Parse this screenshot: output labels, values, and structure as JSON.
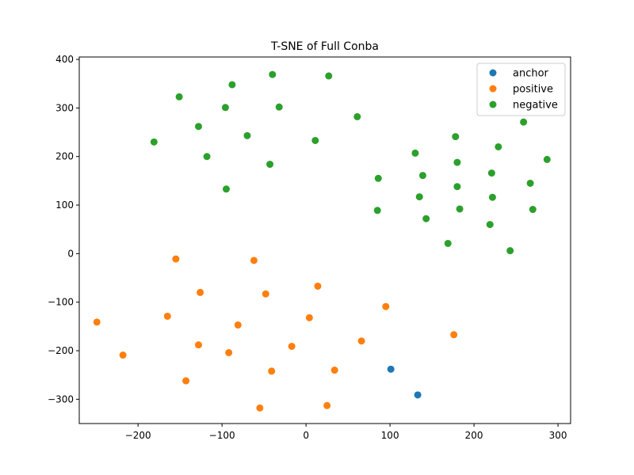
{
  "chart_data": {
    "type": "scatter",
    "title": "T-SNE of Full Conba",
    "xlabel": "",
    "ylabel": "",
    "xlim": [
      -270,
      315
    ],
    "ylim": [
      -350,
      405
    ],
    "xticks": [
      -200,
      -100,
      0,
      100,
      200,
      300
    ],
    "yticks": [
      -300,
      -200,
      -100,
      0,
      100,
      200,
      300,
      400
    ],
    "grid": false,
    "legend_position": "top-right",
    "series": [
      {
        "name": "anchor",
        "color": "#1f77b4",
        "points": [
          [
            101,
            -238
          ],
          [
            133,
            -291
          ]
        ]
      },
      {
        "name": "positive",
        "color": "#ff7f0e",
        "points": [
          [
            -155,
            -11
          ],
          [
            -62,
            -14
          ],
          [
            -126,
            -80
          ],
          [
            -48,
            -83
          ],
          [
            14,
            -67
          ],
          [
            -249,
            -141
          ],
          [
            -165,
            -129
          ],
          [
            -81,
            -147
          ],
          [
            4,
            -132
          ],
          [
            95,
            -109
          ],
          [
            -218,
            -209
          ],
          [
            -128,
            -188
          ],
          [
            -92,
            -204
          ],
          [
            -17,
            -191
          ],
          [
            66,
            -180
          ],
          [
            176,
            -167
          ],
          [
            -143,
            -262
          ],
          [
            -41,
            -242
          ],
          [
            34,
            -240
          ],
          [
            -55,
            -318
          ],
          [
            25,
            -313
          ]
        ]
      },
      {
        "name": "negative",
        "color": "#2ca02c",
        "points": [
          [
            -40,
            369
          ],
          [
            27,
            366
          ],
          [
            -88,
            348
          ],
          [
            -151,
            323
          ],
          [
            -96,
            301
          ],
          [
            -32,
            302
          ],
          [
            61,
            282
          ],
          [
            -128,
            262
          ],
          [
            -70,
            243
          ],
          [
            11,
            233
          ],
          [
            -181,
            230
          ],
          [
            -118,
            200
          ],
          [
            -43,
            184
          ],
          [
            -95,
            133
          ],
          [
            259,
            271
          ],
          [
            178,
            241
          ],
          [
            229,
            220
          ],
          [
            130,
            207
          ],
          [
            287,
            194
          ],
          [
            180,
            188
          ],
          [
            221,
            166
          ],
          [
            86,
            155
          ],
          [
            139,
            161
          ],
          [
            267,
            145
          ],
          [
            180,
            138
          ],
          [
            222,
            116
          ],
          [
            135,
            117
          ],
          [
            85,
            89
          ],
          [
            183,
            92
          ],
          [
            270,
            91
          ],
          [
            143,
            72
          ],
          [
            169,
            21
          ],
          [
            219,
            60
          ],
          [
            243,
            6
          ]
        ]
      }
    ]
  }
}
